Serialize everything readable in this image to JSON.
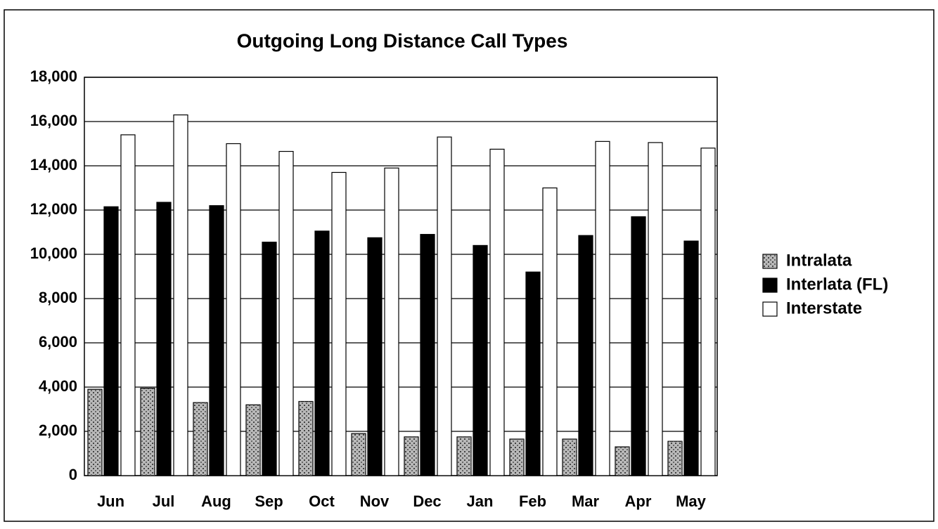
{
  "chart_data": {
    "type": "bar",
    "title": "Outgoing Long Distance Call Types",
    "categories": [
      "Jun",
      "Jul",
      "Aug",
      "Sep",
      "Oct",
      "Nov",
      "Dec",
      "Jan",
      "Feb",
      "Mar",
      "Apr",
      "May"
    ],
    "series": [
      {
        "name": "Intralata",
        "color": "#b8b8b8",
        "values": [
          3900,
          3950,
          3300,
          3200,
          3350,
          1900,
          1750,
          1750,
          1650,
          1650,
          1300,
          1550
        ]
      },
      {
        "name": "Interlata (FL)",
        "color": "#000000",
        "values": [
          12150,
          12350,
          12200,
          10550,
          11050,
          10750,
          10900,
          10400,
          9200,
          10850,
          11700,
          10600
        ]
      },
      {
        "name": "Interstate",
        "color": "#ffffff",
        "values": [
          15400,
          16300,
          15000,
          14650,
          13700,
          13900,
          15300,
          14750,
          13000,
          15100,
          15050,
          14800
        ]
      }
    ],
    "ylim": [
      0,
      18000
    ],
    "yticks": [
      0,
      {
        "value": 2000,
        "label": "2,000"
      },
      {
        "value": 4000,
        "label": "4,000"
      },
      {
        "value": 6000,
        "label": "6,000"
      },
      {
        "value": 8000,
        "label": "8,000"
      },
      {
        "value": 10000,
        "label": "10,000"
      },
      {
        "value": 12000,
        "label": "12,000"
      },
      {
        "value": 14000,
        "label": "14,000"
      },
      {
        "value": 16000,
        "label": "16,000"
      },
      {
        "value": 18000,
        "label": "18,000"
      }
    ],
    "grid": true,
    "legend": "right"
  }
}
